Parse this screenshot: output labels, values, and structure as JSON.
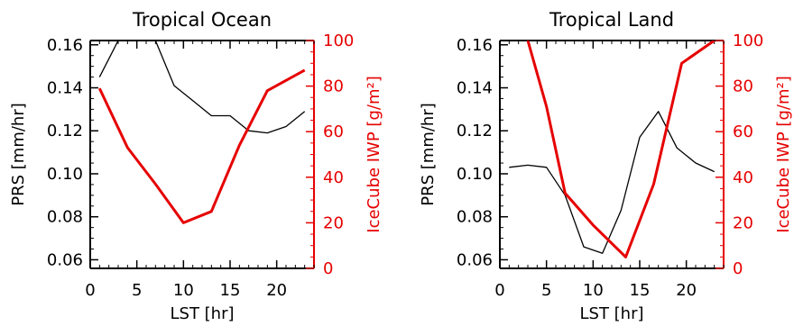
{
  "colors": {
    "prs": "#000000",
    "iwp": "#e60000",
    "axis": "#000000"
  },
  "chart_data": [
    {
      "type": "line",
      "title": "Tropical Ocean",
      "xlabel": "LST [hr]",
      "ylabel_left": "PRS [mm/hr]",
      "ylabel_right": "IceCube IWP [g/m²]",
      "xlim": [
        0,
        24
      ],
      "xticks": [
        "0",
        "5",
        "10",
        "15",
        "20"
      ],
      "ylim_left": [
        0.056,
        0.162
      ],
      "yticks_left": [
        "0.06",
        "0.08",
        "0.10",
        "0.12",
        "0.14",
        "0.16"
      ],
      "ylim_right": [
        0,
        100
      ],
      "yticks_right": [
        "0",
        "20",
        "40",
        "60",
        "80",
        "100"
      ],
      "series": [
        {
          "axis": "left",
          "x": [
            1,
            3,
            5,
            7,
            9,
            11,
            13,
            15,
            17,
            19,
            21,
            23
          ],
          "y": [
            0.145,
            0.162,
            0.162,
            0.162,
            0.141,
            0.134,
            0.127,
            0.127,
            0.12,
            0.119,
            0.122,
            0.129
          ]
        },
        {
          "axis": "right",
          "x": [
            1,
            4,
            7,
            10,
            13,
            16,
            19,
            23
          ],
          "y": [
            79,
            53,
            37,
            20,
            25,
            54,
            78,
            87
          ]
        }
      ]
    },
    {
      "type": "line",
      "title": "Tropical Land",
      "xlabel": "LST [hr]",
      "ylabel_left": "PRS [mm/hr]",
      "ylabel_right": "IceCube IWP [g/m²]",
      "xlim": [
        0,
        24
      ],
      "xticks": [
        "0",
        "5",
        "10",
        "15",
        "20"
      ],
      "ylim_left": [
        0.056,
        0.162
      ],
      "yticks_left": [
        "0.06",
        "0.08",
        "0.10",
        "0.12",
        "0.14",
        "0.16"
      ],
      "ylim_right": [
        0,
        100
      ],
      "yticks_right": [
        "0",
        "20",
        "40",
        "60",
        "80",
        "100"
      ],
      "series": [
        {
          "axis": "left",
          "x": [
            1,
            3,
            5,
            7,
            9,
            11,
            13,
            15,
            17,
            19,
            21,
            23
          ],
          "y": [
            0.103,
            0.104,
            0.103,
            0.09,
            0.066,
            0.063,
            0.083,
            0.117,
            0.129,
            0.112,
            0.105,
            0.101
          ]
        },
        {
          "axis": "right",
          "x": [
            3,
            5,
            7,
            10,
            13.5,
            16.5,
            19.5,
            23
          ],
          "y": [
            100,
            71,
            33,
            19,
            5,
            37,
            90,
            100
          ]
        }
      ]
    }
  ]
}
